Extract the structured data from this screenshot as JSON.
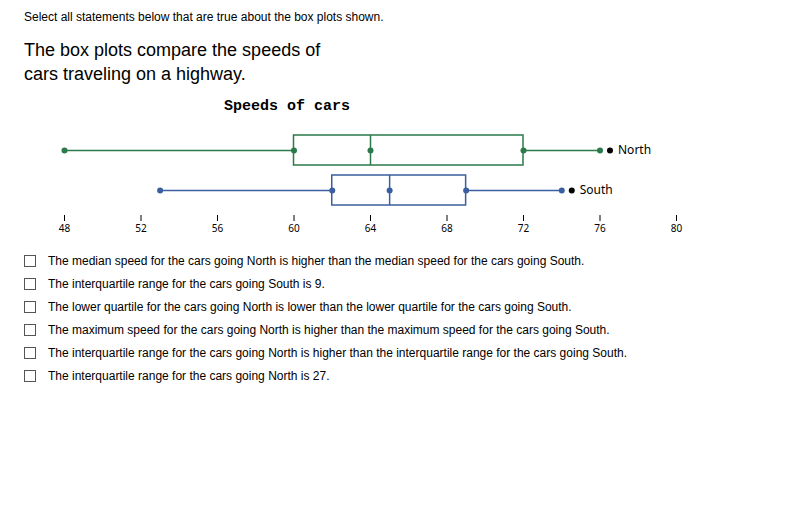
{
  "chart_data": {
    "type": "box",
    "title": "Speeds of cars",
    "header": "Select all statements below that are true about the box plots shown.",
    "subtitle": [
      "The box plots compare the speeds of",
      "cars traveling on a highway."
    ],
    "series": [
      {
        "name": "North",
        "color": "#2a7a4a",
        "min": 48,
        "q1": 60,
        "median": 64,
        "q3": 72,
        "max": 76
      },
      {
        "name": "South",
        "color": "#3a5fa0",
        "min": 53,
        "q1": 62,
        "median": 65,
        "q3": 69,
        "max": 74
      }
    ],
    "xlim": [
      48,
      80
    ],
    "xticks": [
      48,
      52,
      56,
      60,
      64,
      68,
      72,
      76,
      80
    ],
    "statements": [
      "The median speed for the cars going North is higher than the median speed for the cars going South.",
      "The interquartile range for the cars going South is 9.",
      "The lower quartile for the cars going North is lower than the lower quartile for the cars going South.",
      "The maximum speed for the cars going North is higher than the maximum speed for the cars going South.",
      "The interquartile range for the cars going North is higher than the interquartile range for the cars going South.",
      "The interquartile range for the cars going North is 27."
    ]
  }
}
